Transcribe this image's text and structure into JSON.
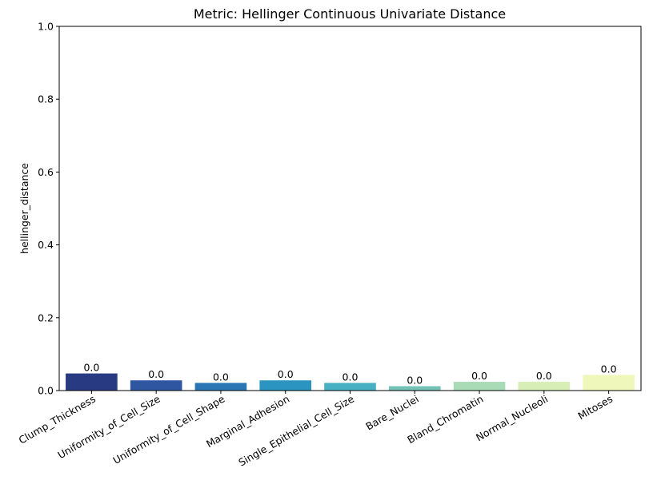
{
  "chart_data": {
    "type": "bar",
    "title": "Metric: Hellinger Continuous Univariate Distance",
    "xlabel": "",
    "ylabel": "hellinger_distance",
    "ylim": [
      0,
      1.0
    ],
    "yticks": [
      "0.0",
      "0.2",
      "0.4",
      "0.6",
      "0.8",
      "1.0"
    ],
    "grid": false,
    "categories": [
      "Clump_Thickness",
      "Uniformity_of_Cell_Size",
      "Uniformity_of_Cell_Shape",
      "Marginal_Adhesion",
      "Single_Epithelial_Cell_Size",
      "Bare_Nuclei",
      "Bland_Chromatin",
      "Normal_Nucleoli",
      "Mitoses"
    ],
    "values": [
      0.047,
      0.028,
      0.021,
      0.028,
      0.021,
      0.012,
      0.024,
      0.024,
      0.043
    ],
    "data_labels": [
      "0.0",
      "0.0",
      "0.0",
      "0.0",
      "0.0",
      "0.0",
      "0.0",
      "0.0",
      "0.0"
    ],
    "colors": [
      "#283a82",
      "#2f56a0",
      "#2a75b3",
      "#2b94c0",
      "#47b0c2",
      "#72c2b8",
      "#a9dbb7",
      "#d7efb6",
      "#eff8ba"
    ]
  }
}
